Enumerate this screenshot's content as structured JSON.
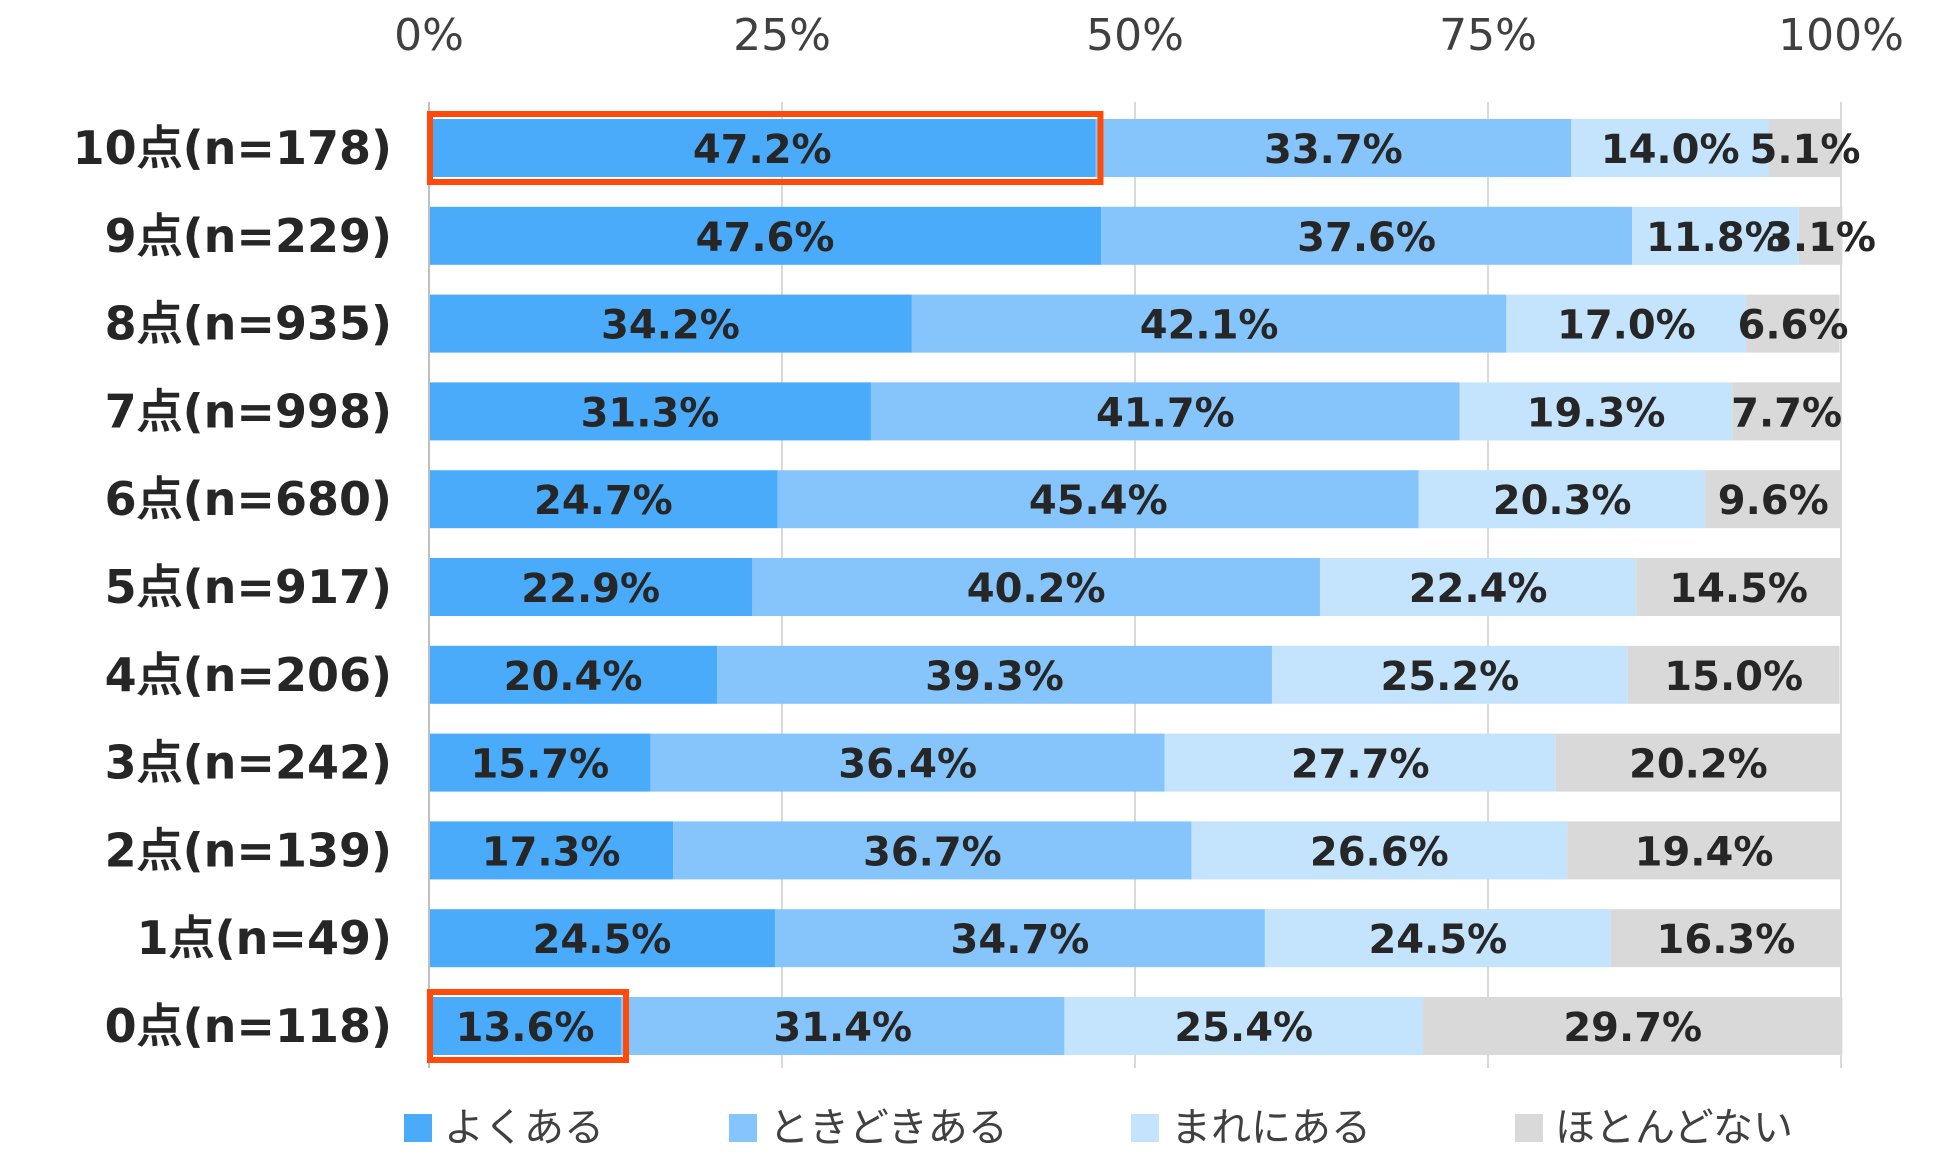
{
  "chart_data": {
    "type": "bar",
    "orientation": "horizontal",
    "stacked": true,
    "xlim": [
      0,
      100
    ],
    "x_ticks": [
      "0%",
      "25%",
      "50%",
      "75%",
      "100%"
    ],
    "x_tick_values": [
      0,
      25,
      50,
      75,
      100
    ],
    "grid": true,
    "legend_position": "bottom",
    "categories": [
      "10点(n=178)",
      "9点(n=229)",
      "8点(n=935)",
      "7点(n=998)",
      "6点(n=680)",
      "5点(n=917)",
      "4点(n=206)",
      "3点(n=242)",
      "2点(n=139)",
      "1点(n=49)",
      "0点(n=118)"
    ],
    "series": [
      {
        "name": "よくある",
        "color": "#4AABFA",
        "values": [
          47.2,
          47.6,
          34.2,
          31.3,
          24.7,
          22.9,
          20.4,
          15.7,
          17.3,
          24.5,
          13.6
        ]
      },
      {
        "name": "ときどきある",
        "color": "#86C5FB",
        "values": [
          33.7,
          37.6,
          42.1,
          41.7,
          45.4,
          40.2,
          39.3,
          36.4,
          36.7,
          34.7,
          31.4
        ]
      },
      {
        "name": "まれにある",
        "color": "#C4E3FD",
        "values": [
          14.0,
          11.8,
          17.0,
          19.3,
          20.3,
          22.4,
          25.2,
          27.7,
          26.6,
          24.5,
          25.4
        ]
      },
      {
        "name": "ほとんどない",
        "color": "#D9D9D9",
        "values": [
          5.1,
          3.1,
          6.6,
          7.7,
          9.6,
          14.5,
          15.0,
          20.2,
          19.4,
          16.3,
          29.7
        ]
      }
    ],
    "highlights": [
      {
        "category_index": 0,
        "series_index": 0,
        "color": "#FF4A0A"
      },
      {
        "category_index": 10,
        "series_index": 0,
        "color": "#FF4A0A"
      }
    ]
  }
}
